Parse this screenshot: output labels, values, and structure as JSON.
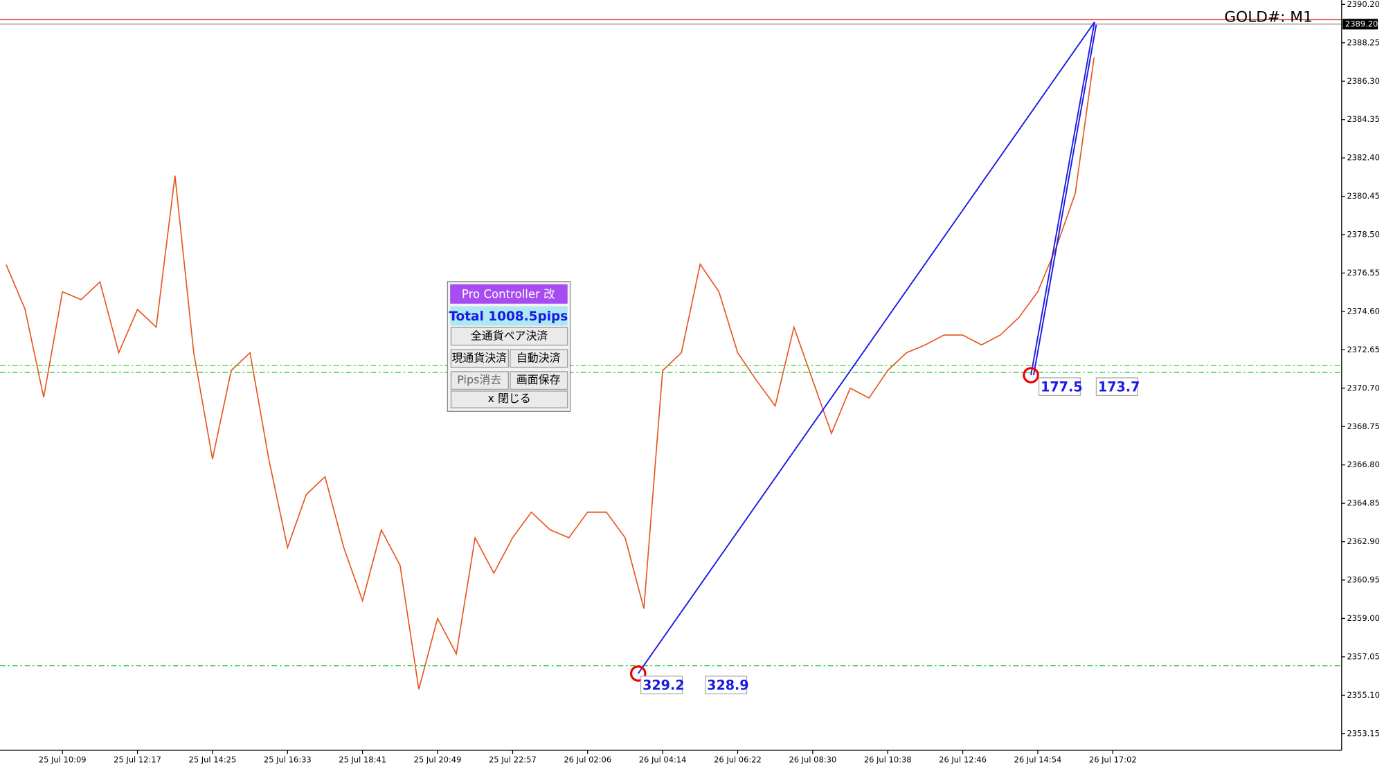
{
  "chart_data": {
    "type": "line",
    "title": "GOLD#: M1",
    "categories": [
      null,
      null,
      null,
      "25 Jul 10:09",
      null,
      null,
      null,
      "25 Jul 12:17",
      null,
      null,
      null,
      "25 Jul 14:25",
      null,
      null,
      null,
      "25 Jul 16:33",
      null,
      null,
      null,
      "25 Jul 18:41",
      null,
      null,
      null,
      "25 Jul 20:49",
      null,
      null,
      null,
      "25 Jul 22:57",
      null,
      null,
      null,
      "26 Jul 02:06",
      null,
      null,
      null,
      "26 Jul 04:14",
      null,
      null,
      null,
      "26 Jul 06:22",
      null,
      null,
      null,
      "26 Jul 08:30",
      null,
      null,
      null,
      "26 Jul 10:38",
      null,
      null,
      null,
      "26 Jul 12:46",
      null,
      null,
      null,
      "26 Jul 14:54",
      null,
      null,
      null,
      "26 Jul 17:02"
    ],
    "series": [
      {
        "color": "#e8541e",
        "values": [
          2376.97,
          2374.73,
          2370.24,
          2375.6,
          2375.2,
          2376.1,
          2372.5,
          2374.7,
          2373.8,
          2381.5,
          2372.5,
          2367.1,
          2371.6,
          2372.5,
          2367.1,
          2362.6,
          2365.3,
          2366.2,
          2362.6,
          2359.9,
          2363.5,
          2361.7,
          2355.4,
          2359.0,
          2357.2,
          2363.1,
          2361.3,
          2363.1,
          2364.4,
          2363.5,
          2363.1,
          2364.4,
          2364.4,
          2363.1,
          2359.5,
          2371.6,
          2372.5,
          2377.0,
          2375.6,
          2372.5,
          2371.1,
          2369.8,
          2373.8,
          2371.1,
          2368.4,
          2370.7,
          2370.2,
          2371.6,
          2372.5,
          2372.9,
          2373.4,
          2373.4,
          2372.9,
          2373.4,
          2374.3,
          2375.6,
          2377.9,
          2380.6,
          2387.5,
          null
        ]
      }
    ],
    "ylim": [
      2353.15,
      2390.2
    ],
    "yticks": [
      {
        "value": 2390.2,
        "label": "2390.20"
      },
      2388.25,
      {
        "value": 2386.3,
        "label": "2386.30"
      },
      2384.35,
      {
        "value": 2382.4,
        "label": "2382.40"
      },
      2380.45,
      {
        "value": 2378.5,
        "label": "2378.50"
      },
      2376.55,
      {
        "value": 2374.6,
        "label": "2374.60"
      },
      2372.65,
      {
        "value": 2370.7,
        "label": "2370.70"
      },
      2368.75,
      {
        "value": 2366.8,
        "label": "2366.80"
      },
      2364.85,
      {
        "value": 2362.9,
        "label": "2362.90"
      },
      2360.95,
      {
        "value": 2359.0,
        "label": "2359.00"
      },
      2357.05,
      {
        "value": 2355.1,
        "label": "2355.10"
      },
      2353.15
    ],
    "price_label": {
      "value": 2389.2,
      "label": "2389.20"
    },
    "levels": [
      2371.85,
      2371.5,
      2356.6
    ],
    "pip_labels": [
      "329.2",
      "328.9",
      "177.5",
      "173.7"
    ]
  },
  "panel": {
    "title": "Pro Controller 改",
    "total": "Total   1008.5pips",
    "buttons": [
      "全通貨ペア決済",
      "現通貨決済",
      "自動決済",
      "Pips消去",
      "画面保存",
      "x 閉じる"
    ]
  }
}
